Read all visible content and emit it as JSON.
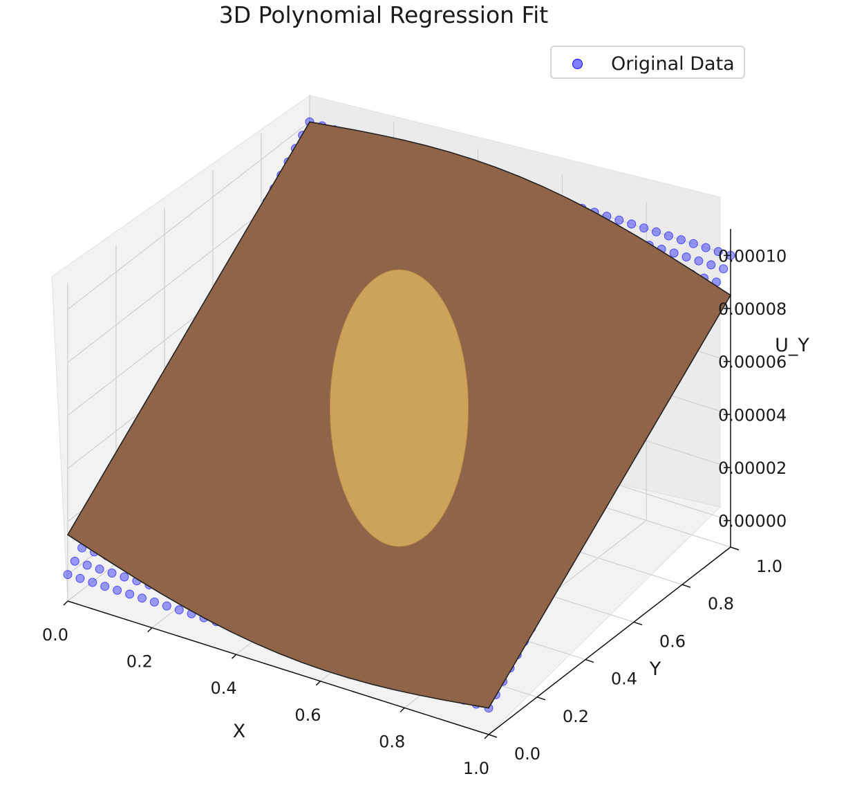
{
  "chart_data": {
    "type": "scatter",
    "title": "3D Polynomial Regression Fit",
    "xlabel": "X",
    "ylabel": "Y",
    "zlabel": "U_Y",
    "xlim": [
      0.0,
      1.0
    ],
    "ylim": [
      0.0,
      1.0
    ],
    "zlim": [
      -1e-05,
      0.00011
    ],
    "x_ticks": [
      "0.0",
      "0.2",
      "0.4",
      "0.6",
      "0.8",
      "1.0"
    ],
    "y_ticks": [
      "0.0",
      "0.2",
      "0.4",
      "0.6",
      "0.8",
      "1.0"
    ],
    "z_ticks": [
      "0.00000",
      "0.00002",
      "0.00004",
      "0.00006",
      "0.00008",
      "0.00010"
    ],
    "legend": {
      "entries": [
        "Original Data"
      ],
      "position": "top-right"
    },
    "grid": true,
    "series": [
      {
        "name": "Original Data",
        "kind": "scatter",
        "color": "#0000ff",
        "description_values": {
          "u_min": 0.0,
          "u_max": 0.0001,
          "hole_center": [
            0.5,
            0.5
          ],
          "hole_radius": 0.2
        }
      },
      {
        "kind": "surface",
        "color": "#c8963c",
        "fit_values": {
          "corner_00": 1.5e-05,
          "corner_10": 0.0,
          "corner_01": 0.0001,
          "corner_11": 8.5e-05
        }
      }
    ]
  }
}
